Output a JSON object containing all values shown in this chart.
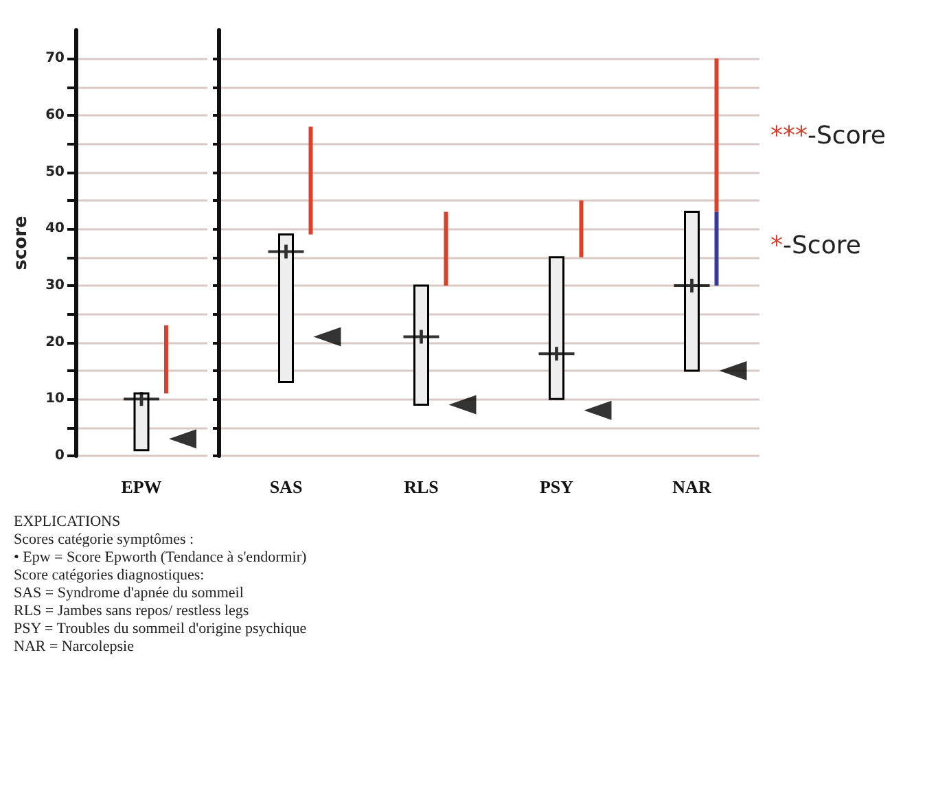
{
  "chart_data": [
    {
      "type": "bar",
      "ylabel": "score",
      "categories": [
        "EPW"
      ],
      "ylim": [
        0,
        75
      ],
      "yticks": [
        0,
        {
          "value": 5,
          "label": null
        },
        10,
        {
          "value": 15,
          "label": null
        },
        20,
        {
          "value": 25,
          "label": null
        },
        30,
        {
          "value": 35,
          "label": null
        },
        40,
        {
          "value": 45,
          "label": null
        },
        50,
        {
          "value": 55,
          "label": null
        },
        60,
        {
          "value": 65,
          "label": null
        },
        70
      ],
      "grid": "y",
      "series": [
        {
          "color": "#eeeeee",
          "base": [
            1
          ],
          "values": [
            10
          ]
        },
        {
          "type": "scatter",
          "marker": "cross",
          "color": "#000000",
          "x": [
            "EPW"
          ],
          "values": [
            10
          ]
        },
        {
          "type": "scatter",
          "marker": "triangle",
          "color": "#000000",
          "x": [
            "EPW"
          ],
          "values": [
            3
          ]
        },
        {
          "color": "#d9412b",
          "base": [
            11
          ],
          "values": [
            12
          ]
        }
      ]
    },
    {
      "type": "bar",
      "categories": [
        "SAS",
        "RLS",
        "PSY",
        "NAR"
      ],
      "ylim": [
        0,
        75
      ],
      "yticks": [
        0,
        {
          "value": 5,
          "label": null
        },
        10,
        {
          "value": 15,
          "label": null
        },
        20,
        {
          "value": 25,
          "label": null
        },
        30,
        {
          "value": 35,
          "label": null
        },
        40,
        {
          "value": 45,
          "label": null
        },
        50,
        {
          "value": 55,
          "label": null
        },
        60,
        {
          "value": 65,
          "label": null
        },
        70
      ],
      "tick_labels": "x",
      "grid": "y",
      "series": [
        {
          "color": "#eeeeee",
          "base": [
            13,
            9,
            10,
            15
          ],
          "values": [
            26,
            21,
            25,
            28
          ]
        },
        {
          "type": "scatter",
          "marker": "cross",
          "color": "#000000",
          "x": [
            "SAS",
            "RLS",
            "PSY",
            "NAR"
          ],
          "values": [
            36,
            21,
            18,
            30
          ]
        },
        {
          "type": "scatter",
          "marker": "triangle",
          "color": "#000000",
          "x": [
            "SAS",
            "RLS",
            "PSY",
            "NAR"
          ],
          "values": [
            21,
            9,
            8,
            15
          ]
        },
        {
          "color": "#d9412b",
          "base": [
            39,
            30,
            35,
            43
          ],
          "values": [
            19,
            13,
            10,
            27
          ]
        },
        {
          "color": "#3a3a9a",
          "base": [
            null,
            null,
            null,
            30
          ],
          "values": [
            null,
            null,
            null,
            13
          ]
        }
      ],
      "annotations": [
        "***-Score",
        "*-Score",
        "EXPLICATIONS",
        "Scores catégorie symptômes :",
        "• Epw = Score Epworth (Tendance à s'endormir)",
        "Score catégories diagnostiques:",
        "SAS = Syndrome d'apnée du sommeil",
        "RLS = Jambes sans repos/ restless legs",
        "PSY = Troubles du sommeil d'origine psychique",
        "NAR = Narcolepsie"
      ]
    }
  ]
}
